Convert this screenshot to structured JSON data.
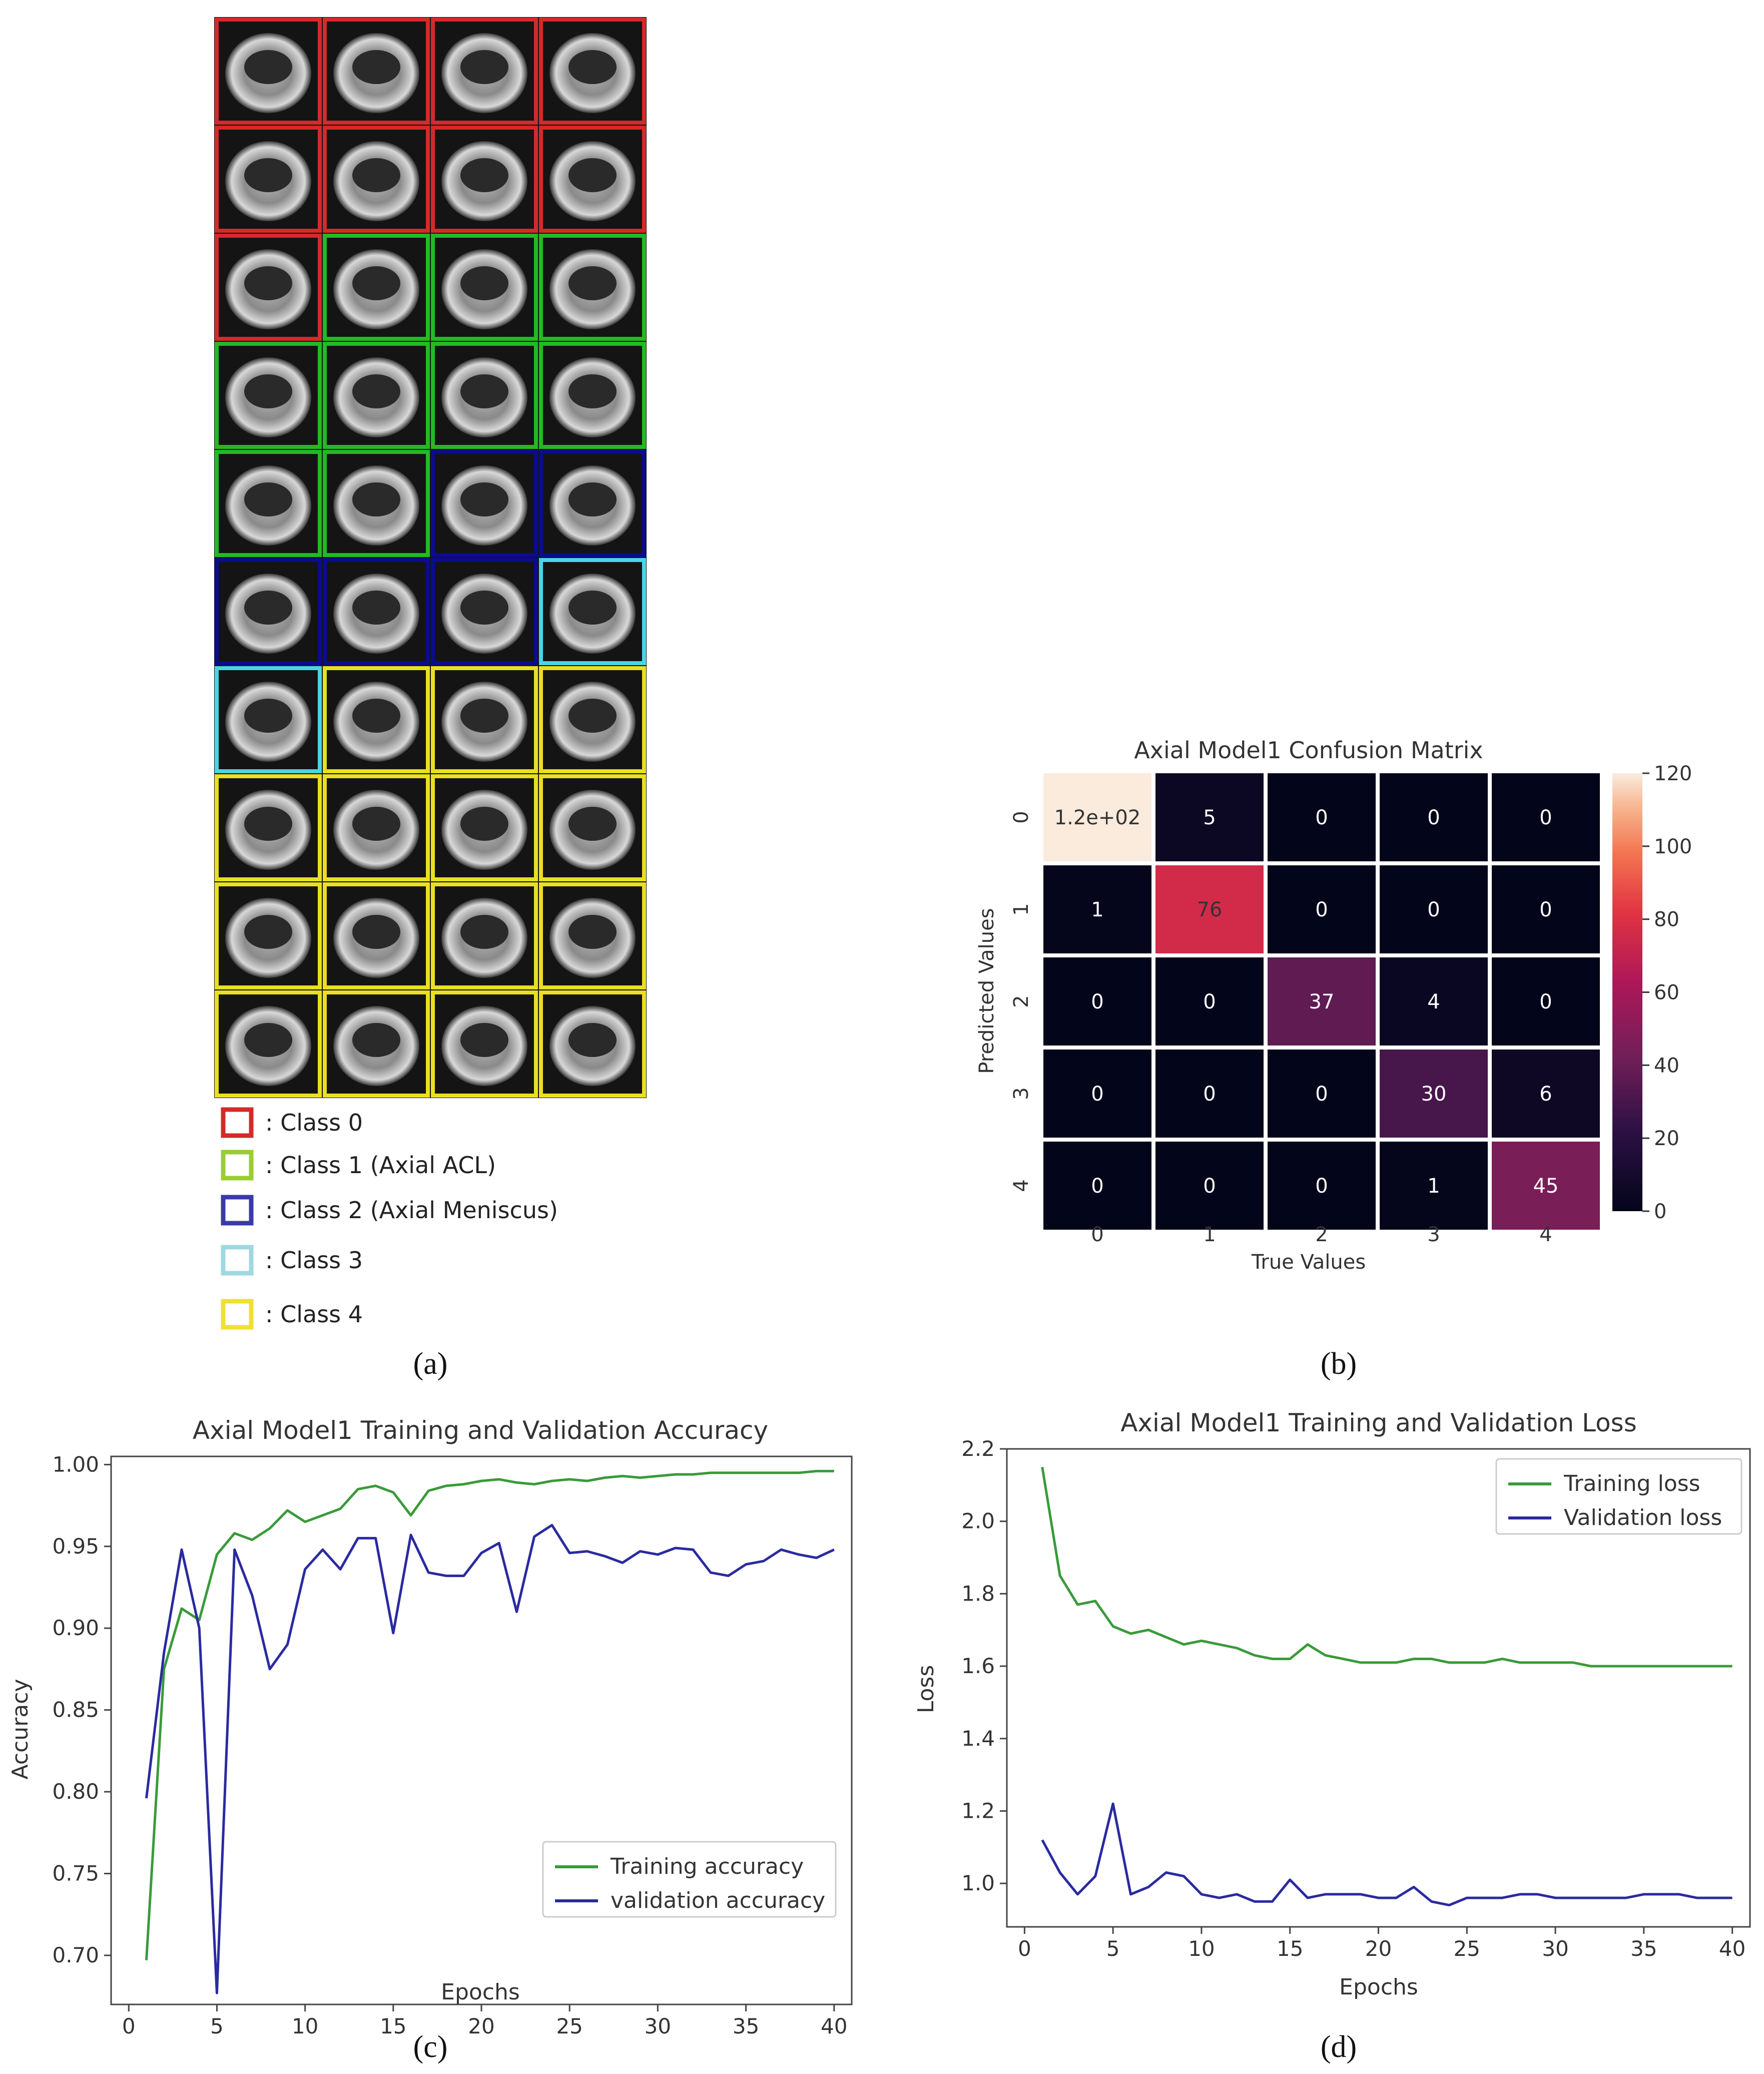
{
  "panel_labels": {
    "a": "(a)",
    "b": "(b)",
    "c": "(c)",
    "d": "(d)"
  },
  "panel_a": {
    "grid_rows": [
      [
        0,
        0,
        0,
        0
      ],
      [
        0,
        0,
        0,
        0
      ],
      [
        0,
        1,
        1,
        1
      ],
      [
        1,
        1,
        1,
        1
      ],
      [
        1,
        1,
        2,
        2
      ],
      [
        2,
        2,
        2,
        3
      ],
      [
        3,
        4,
        4,
        4
      ],
      [
        4,
        4,
        4,
        4
      ],
      [
        4,
        4,
        4,
        4
      ],
      [
        4,
        4,
        4,
        4
      ]
    ],
    "legend": [
      {
        "label": ": Class 0",
        "color": "#d42a2a"
      },
      {
        "label": ": Class 1 (Axial ACL)",
        "color": "#9acd32"
      },
      {
        "label": ": Class 2 (Axial Meniscus)",
        "color": "#3a3aa8"
      },
      {
        "label": ": Class 3",
        "color": "#9fd8e0"
      },
      {
        "label": ": Class 4",
        "color": "#f0e030"
      }
    ],
    "border_colors": [
      "#d42a2a",
      "#22bb22",
      "#0b0b8f",
      "#48d6e6",
      "#e8e020"
    ]
  },
  "chart_data": [
    {
      "type": "heatmap",
      "title": "Axial Model1 Confusion Matrix",
      "xlabel": "True Values",
      "ylabel": "Predicted Values",
      "categories": [
        "0",
        "1",
        "2",
        "3",
        "4"
      ],
      "cells": [
        [
          "1.2e+02",
          "5",
          "0",
          "0",
          "0"
        ],
        [
          "1",
          "76",
          "0",
          "0",
          "0"
        ],
        [
          "0",
          "0",
          "37",
          "4",
          "0"
        ],
        [
          "0",
          "0",
          "0",
          "30",
          "6"
        ],
        [
          "0",
          "0",
          "0",
          "1",
          "45"
        ]
      ],
      "values": [
        [
          120,
          5,
          0,
          0,
          0
        ],
        [
          1,
          76,
          0,
          0,
          0
        ],
        [
          0,
          0,
          37,
          4,
          0
        ],
        [
          0,
          0,
          0,
          30,
          6
        ],
        [
          0,
          0,
          0,
          1,
          45
        ]
      ],
      "colorbar_ticks": [
        "0",
        "20",
        "40",
        "60",
        "80",
        "100",
        "120"
      ],
      "vmin": 0,
      "vmax": 120
    },
    {
      "type": "line",
      "title": "Axial Model1 Training and Validation Accuracy",
      "xlabel": "Epochs",
      "ylabel": "Accuracy",
      "xlim": [
        -1,
        41
      ],
      "ylim": [
        0.67,
        1.005
      ],
      "xticks": [
        0,
        5,
        10,
        15,
        20,
        25,
        30,
        35,
        40
      ],
      "yticks": [
        "0.70",
        "0.75",
        "0.80",
        "0.85",
        "0.90",
        "0.95",
        "1.00"
      ],
      "yticks_num": [
        0.7,
        0.75,
        0.8,
        0.85,
        0.9,
        0.95,
        1.0
      ],
      "legend_position": "lower-right",
      "x": [
        1,
        2,
        3,
        4,
        5,
        6,
        7,
        8,
        9,
        10,
        11,
        12,
        13,
        14,
        15,
        16,
        17,
        18,
        19,
        20,
        21,
        22,
        23,
        24,
        25,
        26,
        27,
        28,
        29,
        30,
        31,
        32,
        33,
        34,
        35,
        36,
        37,
        38,
        39,
        40
      ],
      "series": [
        {
          "name": "Training accuracy",
          "color": "#3a9a3a",
          "values": [
            0.697,
            0.875,
            0.912,
            0.905,
            0.945,
            0.958,
            0.954,
            0.961,
            0.972,
            0.965,
            0.969,
            0.973,
            0.985,
            0.987,
            0.983,
            0.969,
            0.984,
            0.987,
            0.988,
            0.99,
            0.991,
            0.989,
            0.988,
            0.99,
            0.991,
            0.99,
            0.992,
            0.993,
            0.992,
            0.993,
            0.994,
            0.994,
            0.995,
            0.995,
            0.995,
            0.995,
            0.995,
            0.995,
            0.996,
            0.996
          ]
        },
        {
          "name": "validation accuracy",
          "color": "#2a2aa0",
          "values": [
            0.796,
            0.885,
            0.948,
            0.9,
            0.677,
            0.948,
            0.92,
            0.875,
            0.89,
            0.936,
            0.948,
            0.936,
            0.955,
            0.955,
            0.897,
            0.957,
            0.934,
            0.932,
            0.932,
            0.946,
            0.952,
            0.91,
            0.956,
            0.963,
            0.946,
            0.947,
            0.944,
            0.94,
            0.947,
            0.945,
            0.949,
            0.948,
            0.934,
            0.932,
            0.939,
            0.941,
            0.948,
            0.945,
            0.943,
            0.948
          ]
        }
      ]
    },
    {
      "type": "line",
      "title": "Axial Model1 Training and Validation Loss",
      "xlabel": "Epochs",
      "ylabel": "Loss",
      "xlim": [
        -1,
        41
      ],
      "ylim": [
        0.88,
        2.2
      ],
      "xticks": [
        0,
        5,
        10,
        15,
        20,
        25,
        30,
        35,
        40
      ],
      "yticks": [
        "1.0",
        "1.2",
        "1.4",
        "1.6",
        "1.8",
        "2.0",
        "2.2"
      ],
      "yticks_num": [
        1.0,
        1.2,
        1.4,
        1.6,
        1.8,
        2.0,
        2.2
      ],
      "legend_position": "top-right",
      "x": [
        1,
        2,
        3,
        4,
        5,
        6,
        7,
        8,
        9,
        10,
        11,
        12,
        13,
        14,
        15,
        16,
        17,
        18,
        19,
        20,
        21,
        22,
        23,
        24,
        25,
        26,
        27,
        28,
        29,
        30,
        31,
        32,
        33,
        34,
        35,
        36,
        37,
        38,
        39,
        40
      ],
      "series": [
        {
          "name": "Training loss",
          "color": "#3a9a3a",
          "values": [
            2.15,
            1.85,
            1.77,
            1.78,
            1.71,
            1.69,
            1.7,
            1.68,
            1.66,
            1.67,
            1.66,
            1.65,
            1.63,
            1.62,
            1.62,
            1.66,
            1.63,
            1.62,
            1.61,
            1.61,
            1.61,
            1.62,
            1.62,
            1.61,
            1.61,
            1.61,
            1.62,
            1.61,
            1.61,
            1.61,
            1.61,
            1.6,
            1.6,
            1.6,
            1.6,
            1.6,
            1.6,
            1.6,
            1.6,
            1.6
          ]
        },
        {
          "name": "Validation loss",
          "color": "#2a2aa0",
          "values": [
            1.12,
            1.03,
            0.97,
            1.02,
            1.22,
            0.97,
            0.99,
            1.03,
            1.02,
            0.97,
            0.96,
            0.97,
            0.95,
            0.95,
            1.01,
            0.96,
            0.97,
            0.97,
            0.97,
            0.96,
            0.96,
            0.99,
            0.95,
            0.94,
            0.96,
            0.96,
            0.96,
            0.97,
            0.97,
            0.96,
            0.96,
            0.96,
            0.96,
            0.96,
            0.97,
            0.97,
            0.97,
            0.96,
            0.96,
            0.96
          ]
        }
      ]
    }
  ]
}
